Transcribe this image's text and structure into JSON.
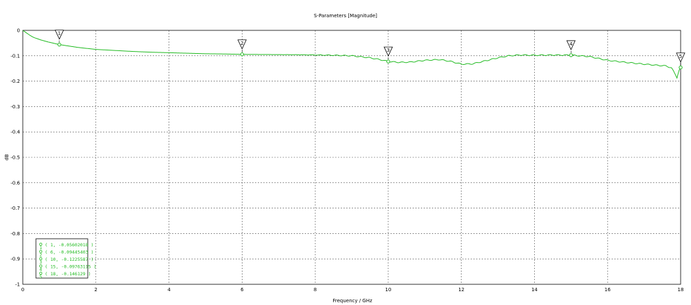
{
  "chart_data": {
    "type": "line",
    "title": "S-Parameters [Magnitude]",
    "xlabel": "Frequency / GHz",
    "ylabel": "dB",
    "xlim": [
      0,
      18
    ],
    "ylim": [
      -1,
      0
    ],
    "x_ticks": [
      0,
      2,
      4,
      6,
      8,
      10,
      12,
      14,
      16,
      18
    ],
    "y_ticks": [
      0,
      -0.1,
      -0.2,
      -0.3,
      -0.4,
      -0.5,
      -0.6,
      -0.7,
      -0.8,
      -0.9,
      -1
    ],
    "grid": true,
    "line_color": "#22bb22",
    "series": [
      {
        "x": [
          0,
          0.1,
          0.2,
          0.3,
          0.5,
          0.7,
          1,
          1.5,
          2,
          2.5,
          3,
          3.5,
          4,
          4.5,
          5,
          5.5,
          6,
          6.5,
          7,
          7.5,
          8,
          8.5,
          9,
          9.5,
          9.8,
          10,
          10.3,
          10.6,
          11,
          11.4,
          11.7,
          12,
          12.3,
          12.6,
          13,
          13.3,
          13.6,
          14,
          14.5,
          15,
          15.5,
          16,
          16.5,
          17,
          17.4,
          17.6,
          17.75,
          17.85,
          17.9,
          17.95,
          18
        ],
        "y": [
          0,
          -0.01,
          -0.02,
          -0.028,
          -0.038,
          -0.046,
          -0.056,
          -0.067,
          -0.075,
          -0.079,
          -0.083,
          -0.086,
          -0.088,
          -0.09,
          -0.092,
          -0.093,
          -0.0945,
          -0.095,
          -0.0955,
          -0.096,
          -0.097,
          -0.098,
          -0.1,
          -0.108,
          -0.116,
          -0.1226,
          -0.126,
          -0.125,
          -0.118,
          -0.115,
          -0.122,
          -0.133,
          -0.132,
          -0.122,
          -0.108,
          -0.1,
          -0.097,
          -0.098,
          -0.097,
          -0.0976,
          -0.103,
          -0.118,
          -0.126,
          -0.133,
          -0.138,
          -0.14,
          -0.148,
          -0.172,
          -0.186,
          -0.16,
          -0.146
        ]
      }
    ],
    "markers": [
      {
        "id": "1",
        "x": 1,
        "y": -0.05602018,
        "label": "( 1, -0.05602018 )"
      },
      {
        "id": "2",
        "x": 6,
        "y": -0.09445403,
        "label": "( 6, -0.09445403 )"
      },
      {
        "id": "3",
        "x": 10,
        "y": -0.1225587,
        "label": "( 10, -0.1225587 )"
      },
      {
        "id": "4",
        "x": 15,
        "y": -0.09763115,
        "label": "( 15, -0.09763115 )"
      },
      {
        "id": "5",
        "x": 18,
        "y": -0.146129,
        "label": "( 18, -0.146129 )"
      }
    ]
  }
}
